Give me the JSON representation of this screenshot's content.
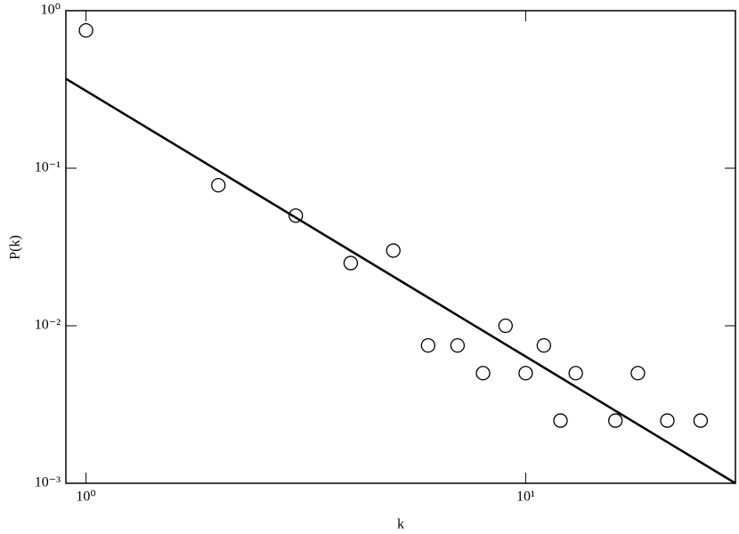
{
  "chart_data": {
    "type": "scatter",
    "xlabel": "k",
    "ylabel": "P(k)",
    "xscale": "log",
    "yscale": "log",
    "xlim": [
      0.9,
      30
    ],
    "ylim": [
      0.001,
      1
    ],
    "xticks": [
      {
        "value": 1,
        "label": "10⁰"
      },
      {
        "value": 10,
        "label": "10¹"
      }
    ],
    "yticks": [
      {
        "value": 0.001,
        "label": "10⁻³"
      },
      {
        "value": 0.01,
        "label": "10⁻²"
      },
      {
        "value": 0.1,
        "label": "10⁻¹"
      },
      {
        "value": 1,
        "label": "10⁰"
      }
    ],
    "series": [
      {
        "color": "#000000",
        "marker": "open-circle",
        "x": [
          1,
          2,
          3,
          4,
          5,
          6,
          7,
          8,
          9,
          10,
          11,
          12,
          13,
          16,
          18,
          21,
          25
        ],
        "values": [
          0.75,
          0.078,
          0.05,
          0.025,
          0.03,
          0.0075,
          0.0075,
          0.005,
          0.01,
          0.005,
          0.0075,
          0.0025,
          0.005,
          0.0025,
          0.005,
          0.0025,
          0.0025
        ]
      },
      {
        "color": "#000000",
        "style": "line",
        "x": [
          0.9,
          30
        ],
        "values": [
          0.37,
          0.001
        ]
      }
    ]
  }
}
